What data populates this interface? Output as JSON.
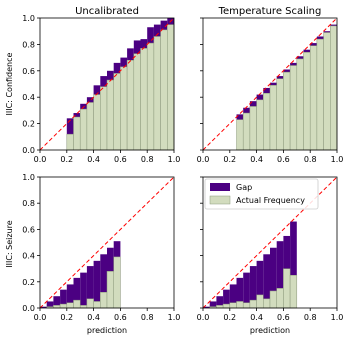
{
  "colors": {
    "gap": "#4b0082",
    "actual": "#d2dcbe",
    "actual_edge": "#8c9a7c",
    "diagonal": "#ff0000"
  },
  "legend": {
    "gap_label": "Gap",
    "actual_label": "Actual Frequency",
    "placement": "upper-left of bottom-right panel"
  },
  "chart_data": [
    {
      "type": "bar",
      "panel": "top-left",
      "title": "Uncalibrated",
      "ylabel": "IIIC: Confidence",
      "xlabel": "",
      "xlim": [
        0,
        1
      ],
      "ylim": [
        0,
        1
      ],
      "xticks": [
        "0.0",
        "0.2",
        "0.4",
        "0.6",
        "0.8",
        "1.0"
      ],
      "yticks": [
        "0.0",
        "0.2",
        "0.4",
        "0.6",
        "0.8",
        "1.0"
      ],
      "bin_width": 0.05,
      "bins": [
        0.2,
        0.25,
        0.3,
        0.35,
        0.4,
        0.45,
        0.5,
        0.55,
        0.6,
        0.65,
        0.7,
        0.75,
        0.8,
        0.85,
        0.9,
        0.95
      ],
      "series": [
        {
          "name": "Gap",
          "values": [
            0.24,
            0.28,
            0.35,
            0.4,
            0.49,
            0.56,
            0.6,
            0.66,
            0.7,
            0.77,
            0.83,
            0.84,
            0.93,
            0.95,
            0.98,
            1.0
          ]
        },
        {
          "name": "Actual Frequency",
          "values": [
            0.12,
            0.25,
            0.31,
            0.36,
            0.42,
            0.48,
            0.53,
            0.58,
            0.63,
            0.68,
            0.73,
            0.77,
            0.81,
            0.86,
            0.91,
            0.95
          ]
        }
      ]
    },
    {
      "type": "bar",
      "panel": "top-right",
      "title": "Temperature Scaling",
      "ylabel": "",
      "xlabel": "",
      "xlim": [
        0,
        1
      ],
      "ylim": [
        0,
        1
      ],
      "xticks": [
        "0.0",
        "0.2",
        "0.4",
        "0.6",
        "0.8",
        "1.0"
      ],
      "yticks": [
        "0.0",
        "0.2",
        "0.4",
        "0.6",
        "0.8",
        "1.0"
      ],
      "bin_width": 0.05,
      "bins": [
        0.25,
        0.3,
        0.35,
        0.4,
        0.45,
        0.5,
        0.55,
        0.6,
        0.65,
        0.7,
        0.75,
        0.8,
        0.85,
        0.9,
        0.95
      ],
      "series": [
        {
          "name": "Gap",
          "values": [
            0.27,
            0.32,
            0.37,
            0.42,
            0.47,
            0.51,
            0.56,
            0.61,
            0.66,
            0.71,
            0.76,
            0.81,
            0.86,
            0.9,
            0.95
          ]
        },
        {
          "name": "Actual Frequency",
          "values": [
            0.23,
            0.28,
            0.33,
            0.38,
            0.43,
            0.49,
            0.54,
            0.59,
            0.64,
            0.69,
            0.74,
            0.79,
            0.84,
            0.89,
            0.94
          ]
        }
      ]
    },
    {
      "type": "bar",
      "panel": "bottom-left",
      "title": "",
      "ylabel": "IIIC: Seizure",
      "xlabel": "prediction",
      "xlim": [
        0,
        1
      ],
      "ylim": [
        0,
        1
      ],
      "xticks": [
        "0.0",
        "0.2",
        "0.4",
        "0.6",
        "0.8",
        "1.0"
      ],
      "yticks": [
        "0.0",
        "0.2",
        "0.4",
        "0.6",
        "0.8",
        "1.0"
      ],
      "bin_width": 0.05,
      "bins": [
        0.0,
        0.05,
        0.1,
        0.15,
        0.2,
        0.25,
        0.3,
        0.35,
        0.4,
        0.45,
        0.5,
        0.55
      ],
      "series": [
        {
          "name": "Gap",
          "values": [
            0.01,
            0.05,
            0.09,
            0.14,
            0.18,
            0.23,
            0.27,
            0.32,
            0.36,
            0.41,
            0.46,
            0.51
          ]
        },
        {
          "name": "Actual Frequency",
          "values": [
            0.0,
            0.01,
            0.02,
            0.03,
            0.04,
            0.06,
            0.02,
            0.07,
            0.05,
            0.12,
            0.28,
            0.39
          ]
        }
      ]
    },
    {
      "type": "bar",
      "panel": "bottom-right",
      "title": "",
      "ylabel": "",
      "xlabel": "prediction",
      "xlim": [
        0,
        1
      ],
      "ylim": [
        0,
        1
      ],
      "xticks": [
        "0.0",
        "0.2",
        "0.4",
        "0.6",
        "0.8",
        "1.0"
      ],
      "yticks": [
        "0.0",
        "0.2",
        "0.4",
        "0.6",
        "0.8",
        "1.0"
      ],
      "bin_width": 0.05,
      "bins": [
        0.0,
        0.05,
        0.1,
        0.15,
        0.2,
        0.25,
        0.3,
        0.35,
        0.4,
        0.45,
        0.5,
        0.55,
        0.6,
        0.65
      ],
      "series": [
        {
          "name": "Gap",
          "values": [
            0.01,
            0.05,
            0.09,
            0.14,
            0.18,
            0.23,
            0.27,
            0.32,
            0.36,
            0.41,
            0.46,
            0.51,
            0.55,
            0.66
          ]
        },
        {
          "name": "Actual Frequency",
          "values": [
            0.0,
            0.01,
            0.02,
            0.03,
            0.04,
            0.05,
            0.04,
            0.06,
            0.1,
            0.07,
            0.13,
            0.15,
            0.3,
            0.25
          ]
        }
      ]
    }
  ]
}
